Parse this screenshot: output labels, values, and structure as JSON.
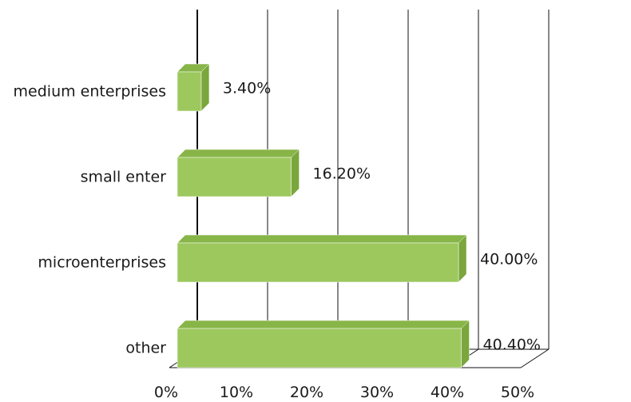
{
  "chart_data": {
    "type": "bar",
    "orientation": "horizontal",
    "style": "3d",
    "title": "",
    "xlabel": "",
    "ylabel": "",
    "categories": [
      "medium enterprises",
      "small enter",
      "microenterprises",
      "other"
    ],
    "values": [
      3.4,
      16.2,
      40.0,
      40.4
    ],
    "value_labels": [
      "3.40%",
      "16.20%",
      "40.00%",
      "40.40%"
    ],
    "x_ticks": [
      "0%",
      "10%",
      "20%",
      "30%",
      "40%",
      "50%"
    ],
    "xlim": [
      0,
      50
    ],
    "grid": true,
    "legend": "none",
    "colors": {
      "bar_front": "#9dc85e",
      "bar_top": "#88b548",
      "bar_side": "#7aa63c",
      "bar_edge": "#ffffff",
      "axis": "#111111",
      "grid": "#111111"
    }
  }
}
